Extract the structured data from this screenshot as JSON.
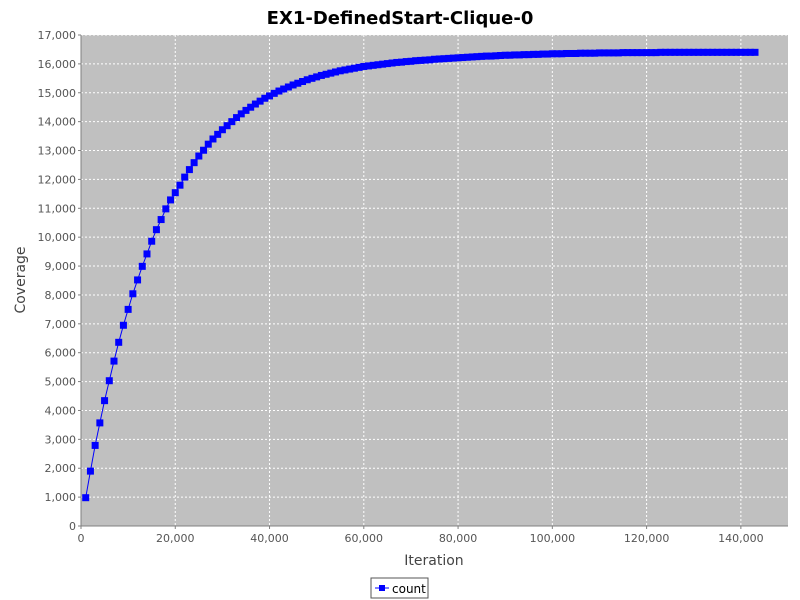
{
  "chart_data": {
    "type": "line",
    "title": "EX1-DefinedStart-Clique-0",
    "xlabel": "Iteration",
    "ylabel": "Coverage",
    "xlim": [
      0,
      150000
    ],
    "ylim": [
      0,
      17000
    ],
    "x_ticks": [
      0,
      20000,
      40000,
      60000,
      80000,
      100000,
      120000,
      140000
    ],
    "y_ticks": [
      0,
      1000,
      2000,
      3000,
      4000,
      5000,
      6000,
      7000,
      8000,
      9000,
      10000,
      11000,
      12000,
      13000,
      14000,
      15000,
      16000,
      17000
    ],
    "x_tick_labels": [
      "0",
      "20,000",
      "40,000",
      "60,000",
      "80,000",
      "100,000",
      "120,000",
      "140,000"
    ],
    "y_tick_labels": [
      "0",
      "1,000",
      "2,000",
      "3,000",
      "4,000",
      "5,000",
      "6,000",
      "7,000",
      "8,000",
      "9,000",
      "10,000",
      "11,000",
      "12,000",
      "13,000",
      "14,000",
      "15,000",
      "16,000",
      "17,000"
    ],
    "grid": true,
    "legend_position": "bottom",
    "plot_background": "#c0c0c0",
    "series": [
      {
        "name": "count",
        "color": "#0000ff",
        "marker": "square",
        "x": [
          1000,
          2000,
          3000,
          4000,
          5000,
          6000,
          7000,
          8000,
          9000,
          10000,
          11000,
          12000,
          13000,
          14000,
          15000,
          16000,
          17000,
          18000,
          19000,
          20000,
          21000,
          22000,
          23000,
          24000,
          25000,
          26000,
          27000,
          28000,
          29000,
          30000,
          31000,
          32000,
          33000,
          34000,
          35000,
          36000,
          37000,
          38000,
          39000,
          40000,
          41000,
          42000,
          43000,
          44000,
          45000,
          46000,
          47000,
          48000,
          49000,
          50000,
          51000,
          52000,
          53000,
          54000,
          55000,
          56000,
          57000,
          58000,
          59000,
          60000,
          61000,
          62000,
          63000,
          64000,
          65000,
          66000,
          67000,
          68000,
          69000,
          70000,
          71000,
          72000,
          73000,
          74000,
          75000,
          76000,
          77000,
          78000,
          79000,
          80000,
          81000,
          82000,
          83000,
          84000,
          85000,
          86000,
          87000,
          88000,
          89000,
          90000,
          91000,
          92000,
          93000,
          94000,
          95000,
          96000,
          97000,
          98000,
          99000,
          100000,
          101000,
          102000,
          103000,
          104000,
          105000,
          106000,
          107000,
          108000,
          109000,
          110000,
          111000,
          112000,
          113000,
          114000,
          115000,
          116000,
          117000,
          118000,
          119000,
          120000,
          121000,
          122000,
          123000,
          124000,
          125000,
          126000,
          127000,
          128000,
          129000,
          130000,
          131000,
          132000,
          133000,
          134000,
          135000,
          136000,
          137000,
          138000,
          139000,
          140000,
          141000,
          142000,
          143000
        ],
        "values": [
          980,
          1900,
          2790,
          3570,
          4340,
          5030,
          5710,
          6360,
          6950,
          7500,
          8040,
          8520,
          8990,
          9420,
          9860,
          10260,
          10610,
          10980,
          11290,
          11540,
          11800,
          12080,
          12340,
          12580,
          12810,
          13010,
          13220,
          13400,
          13560,
          13720,
          13860,
          14000,
          14140,
          14270,
          14390,
          14500,
          14610,
          14710,
          14810,
          14890,
          14980,
          15060,
          15130,
          15200,
          15270,
          15330,
          15390,
          15450,
          15500,
          15550,
          15600,
          15640,
          15680,
          15720,
          15760,
          15790,
          15820,
          15850,
          15880,
          15910,
          15930,
          15950,
          15970,
          15990,
          16010,
          16030,
          16050,
          16060,
          16080,
          16090,
          16110,
          16120,
          16130,
          16140,
          16160,
          16170,
          16180,
          16190,
          16200,
          16210,
          16220,
          16230,
          16240,
          16250,
          16260,
          16270,
          16270,
          16280,
          16290,
          16300,
          16300,
          16310,
          16310,
          16320,
          16320,
          16330,
          16330,
          16340,
          16340,
          16350,
          16350,
          16350,
          16360,
          16360,
          16360,
          16370,
          16370,
          16370,
          16370,
          16380,
          16380,
          16380,
          16380,
          16380,
          16390,
          16390,
          16390,
          16390,
          16390,
          16390,
          16390,
          16390,
          16400,
          16400,
          16400,
          16400,
          16400,
          16400,
          16400,
          16400,
          16400,
          16400,
          16400,
          16400,
          16400,
          16400,
          16400,
          16400,
          16400,
          16400,
          16400,
          16400,
          16400
        ]
      }
    ]
  }
}
